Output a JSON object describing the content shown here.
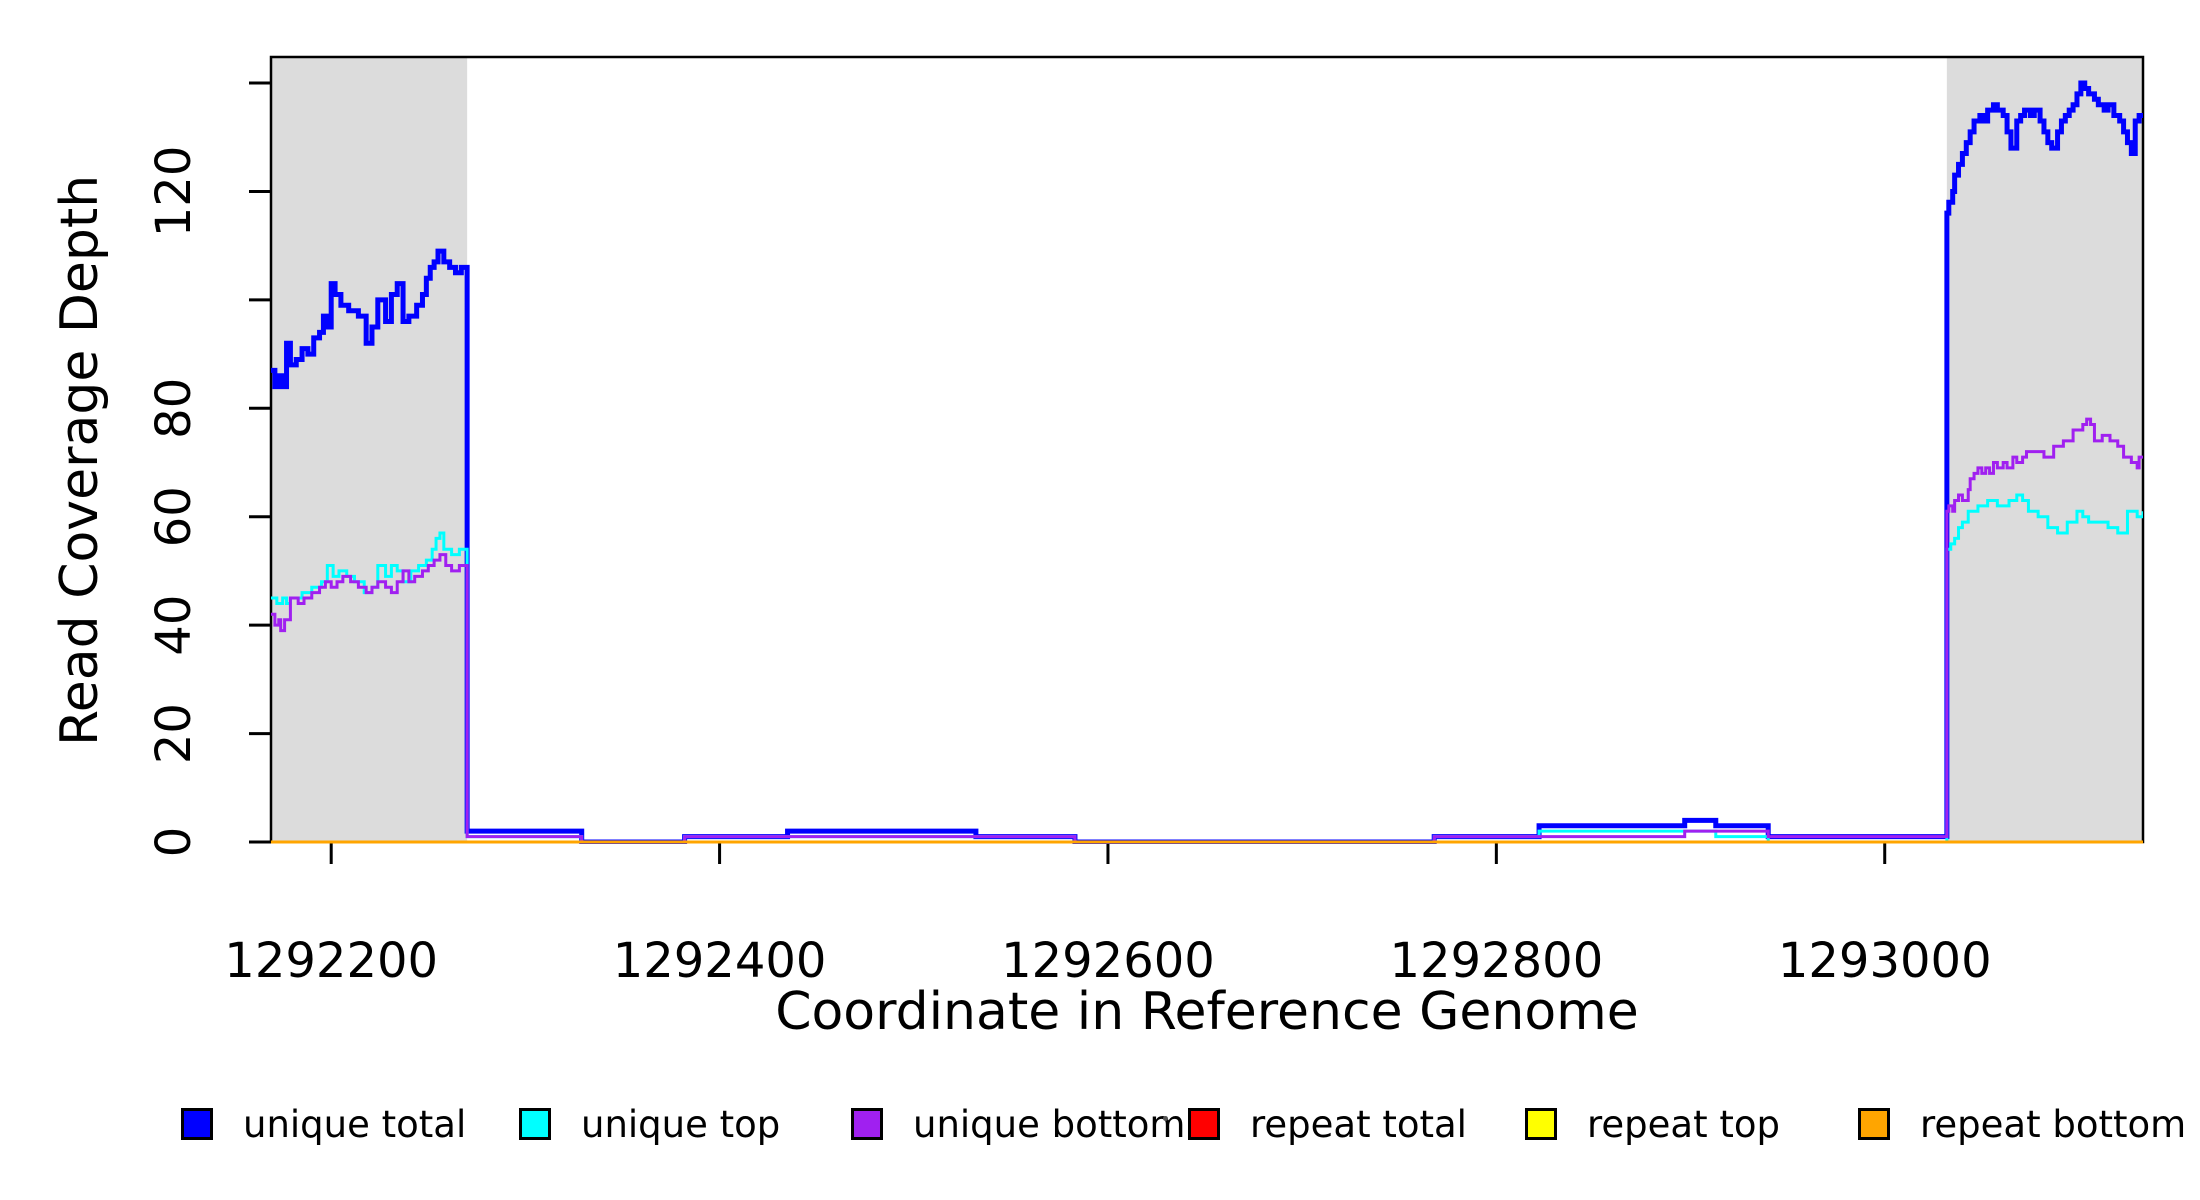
{
  "chart_data": {
    "type": "line",
    "subtype": "step-coverage",
    "title": "",
    "xlabel": "Coordinate in Reference Genome",
    "ylabel": "Read Coverage Depth",
    "xlim": [
      1292169,
      1293133
    ],
    "ylim": [
      0,
      144.8
    ],
    "grid": false,
    "legend_position": "bottom",
    "x_ticks": [
      1292200,
      1292400,
      1292600,
      1292800,
      1293000
    ],
    "x_tick_labels": [
      "1292200",
      "1292400",
      "1292600",
      "1292800",
      "1293000"
    ],
    "y_ticks": [
      0,
      20,
      40,
      60,
      80,
      100,
      120,
      140
    ],
    "y_tick_labels": [
      "0",
      "20",
      "40",
      "60",
      "80",
      "",
      "120",
      ""
    ],
    "shaded_regions": [
      {
        "x0": 1292169,
        "x1": 1292270,
        "color": "#DCDCDC"
      },
      {
        "x0": 1293032,
        "x1": 1293133,
        "color": "#DCDCDC"
      }
    ],
    "series": [
      {
        "name": "unique total",
        "color": "#0000FF",
        "width": 5,
        "points": [
          [
            1292169,
            87
          ],
          [
            1292171,
            84
          ],
          [
            1292173,
            86
          ],
          [
            1292175,
            84
          ],
          [
            1292177,
            92
          ],
          [
            1292179,
            88
          ],
          [
            1292182,
            89
          ],
          [
            1292185,
            91
          ],
          [
            1292188,
            90
          ],
          [
            1292191,
            93
          ],
          [
            1292194,
            94
          ],
          [
            1292196,
            97
          ],
          [
            1292198,
            95
          ],
          [
            1292200,
            103
          ],
          [
            1292202,
            101
          ],
          [
            1292205,
            99
          ],
          [
            1292209,
            98
          ],
          [
            1292214,
            97
          ],
          [
            1292218,
            92
          ],
          [
            1292221,
            95
          ],
          [
            1292224,
            100
          ],
          [
            1292228,
            96
          ],
          [
            1292231,
            101
          ],
          [
            1292234,
            103
          ],
          [
            1292237,
            96
          ],
          [
            1292240,
            97
          ],
          [
            1292244,
            99
          ],
          [
            1292247,
            101
          ],
          [
            1292249,
            104
          ],
          [
            1292251,
            106
          ],
          [
            1292253,
            107
          ],
          [
            1292255,
            109
          ],
          [
            1292258,
            107
          ],
          [
            1292261,
            106
          ],
          [
            1292264,
            105
          ],
          [
            1292267,
            106
          ],
          [
            1292270,
            2
          ],
          [
            1292329,
            0
          ],
          [
            1292382,
            1
          ],
          [
            1292435,
            2
          ],
          [
            1292532,
            1
          ],
          [
            1292583,
            0
          ],
          [
            1292768,
            1
          ],
          [
            1292822,
            3
          ],
          [
            1292897,
            4
          ],
          [
            1292913,
            3
          ],
          [
            1292940,
            1
          ],
          [
            1293032,
            116
          ],
          [
            1293033,
            118
          ],
          [
            1293035,
            120
          ],
          [
            1293036,
            123
          ],
          [
            1293038,
            125
          ],
          [
            1293040,
            127
          ],
          [
            1293042,
            129
          ],
          [
            1293044,
            131
          ],
          [
            1293046,
            133
          ],
          [
            1293049,
            134
          ],
          [
            1293051,
            133
          ],
          [
            1293053,
            135
          ],
          [
            1293056,
            136
          ],
          [
            1293058,
            135
          ],
          [
            1293061,
            134
          ],
          [
            1293063,
            131
          ],
          [
            1293065,
            128
          ],
          [
            1293068,
            133
          ],
          [
            1293070,
            134
          ],
          [
            1293072,
            135
          ],
          [
            1293075,
            134
          ],
          [
            1293077,
            135
          ],
          [
            1293080,
            133
          ],
          [
            1293082,
            131
          ],
          [
            1293084,
            129
          ],
          [
            1293086,
            128
          ],
          [
            1293089,
            131
          ],
          [
            1293091,
            133
          ],
          [
            1293093,
            134
          ],
          [
            1293095,
            135
          ],
          [
            1293097,
            136
          ],
          [
            1293099,
            138
          ],
          [
            1293101,
            140
          ],
          [
            1293103,
            139
          ],
          [
            1293105,
            138
          ],
          [
            1293108,
            137
          ],
          [
            1293110,
            136
          ],
          [
            1293113,
            135
          ],
          [
            1293115,
            136
          ],
          [
            1293118,
            134
          ],
          [
            1293121,
            133
          ],
          [
            1293123,
            131
          ],
          [
            1293125,
            129
          ],
          [
            1293127,
            127
          ],
          [
            1293129,
            133
          ],
          [
            1293131,
            134
          ],
          [
            1293133,
            134
          ]
        ]
      },
      {
        "name": "unique top",
        "color": "#00FFFF",
        "width": 3,
        "points": [
          [
            1292169,
            45
          ],
          [
            1292172,
            44
          ],
          [
            1292175,
            45
          ],
          [
            1292177,
            44
          ],
          [
            1292179,
            45
          ],
          [
            1292185,
            46
          ],
          [
            1292190,
            47
          ],
          [
            1292195,
            48
          ],
          [
            1292198,
            51
          ],
          [
            1292201,
            49
          ],
          [
            1292204,
            50
          ],
          [
            1292208,
            49
          ],
          [
            1292212,
            48
          ],
          [
            1292217,
            46
          ],
          [
            1292221,
            47
          ],
          [
            1292224,
            51
          ],
          [
            1292228,
            49
          ],
          [
            1292231,
            51
          ],
          [
            1292234,
            50
          ],
          [
            1292237,
            48
          ],
          [
            1292241,
            50
          ],
          [
            1292245,
            51
          ],
          [
            1292249,
            52
          ],
          [
            1292252,
            54
          ],
          [
            1292254,
            56
          ],
          [
            1292256,
            57
          ],
          [
            1292258,
            54
          ],
          [
            1292262,
            53
          ],
          [
            1292266,
            54
          ],
          [
            1292270,
            1
          ],
          [
            1292329,
            0
          ],
          [
            1292382,
            1
          ],
          [
            1292583,
            0
          ],
          [
            1292768,
            1
          ],
          [
            1292822,
            2
          ],
          [
            1292913,
            1
          ],
          [
            1292940,
            0
          ],
          [
            1293032,
            54
          ],
          [
            1293034,
            55
          ],
          [
            1293036,
            56
          ],
          [
            1293038,
            58
          ],
          [
            1293040,
            59
          ],
          [
            1293043,
            61
          ],
          [
            1293048,
            62
          ],
          [
            1293053,
            63
          ],
          [
            1293058,
            62
          ],
          [
            1293064,
            63
          ],
          [
            1293068,
            64
          ],
          [
            1293071,
            63
          ],
          [
            1293074,
            61
          ],
          [
            1293079,
            60
          ],
          [
            1293084,
            58
          ],
          [
            1293089,
            57
          ],
          [
            1293094,
            59
          ],
          [
            1293099,
            61
          ],
          [
            1293102,
            60
          ],
          [
            1293105,
            59
          ],
          [
            1293110,
            59
          ],
          [
            1293115,
            58
          ],
          [
            1293120,
            57
          ],
          [
            1293125,
            61
          ],
          [
            1293130,
            60
          ],
          [
            1293133,
            61
          ]
        ]
      },
      {
        "name": "unique bottom",
        "color": "#A020F0",
        "width": 3,
        "points": [
          [
            1292169,
            42
          ],
          [
            1292171,
            40
          ],
          [
            1292173,
            41
          ],
          [
            1292174,
            39
          ],
          [
            1292176,
            41
          ],
          [
            1292179,
            45
          ],
          [
            1292183,
            44
          ],
          [
            1292186,
            45
          ],
          [
            1292190,
            46
          ],
          [
            1292194,
            47
          ],
          [
            1292197,
            48
          ],
          [
            1292200,
            47
          ],
          [
            1292203,
            48
          ],
          [
            1292206,
            49
          ],
          [
            1292210,
            48
          ],
          [
            1292214,
            47
          ],
          [
            1292218,
            46
          ],
          [
            1292221,
            47
          ],
          [
            1292224,
            48
          ],
          [
            1292228,
            47
          ],
          [
            1292231,
            46
          ],
          [
            1292234,
            48
          ],
          [
            1292237,
            50
          ],
          [
            1292240,
            48
          ],
          [
            1292243,
            49
          ],
          [
            1292247,
            50
          ],
          [
            1292250,
            51
          ],
          [
            1292253,
            52
          ],
          [
            1292256,
            53
          ],
          [
            1292259,
            51
          ],
          [
            1292262,
            50
          ],
          [
            1292266,
            51
          ],
          [
            1292270,
            1
          ],
          [
            1292329,
            0
          ],
          [
            1292382,
            1
          ],
          [
            1292583,
            0
          ],
          [
            1292768,
            1
          ],
          [
            1292897,
            2
          ],
          [
            1292940,
            1
          ],
          [
            1293032,
            61
          ],
          [
            1293033,
            62
          ],
          [
            1293035,
            61
          ],
          [
            1293036,
            63
          ],
          [
            1293038,
            64
          ],
          [
            1293040,
            63
          ],
          [
            1293043,
            65
          ],
          [
            1293044,
            67
          ],
          [
            1293046,
            68
          ],
          [
            1293048,
            69
          ],
          [
            1293050,
            68
          ],
          [
            1293052,
            69
          ],
          [
            1293054,
            68
          ],
          [
            1293056,
            70
          ],
          [
            1293058,
            69
          ],
          [
            1293061,
            70
          ],
          [
            1293063,
            69
          ],
          [
            1293066,
            71
          ],
          [
            1293068,
            70
          ],
          [
            1293071,
            71
          ],
          [
            1293073,
            72
          ],
          [
            1293078,
            72
          ],
          [
            1293082,
            71
          ],
          [
            1293087,
            73
          ],
          [
            1293092,
            74
          ],
          [
            1293097,
            76
          ],
          [
            1293100,
            76
          ],
          [
            1293102,
            77
          ],
          [
            1293104,
            78
          ],
          [
            1293106,
            77
          ],
          [
            1293108,
            74
          ],
          [
            1293112,
            75
          ],
          [
            1293116,
            74
          ],
          [
            1293120,
            73
          ],
          [
            1293123,
            71
          ],
          [
            1293127,
            70
          ],
          [
            1293130,
            69
          ],
          [
            1293131,
            71
          ],
          [
            1293133,
            71
          ]
        ]
      },
      {
        "name": "repeat total",
        "color": "#FF0000",
        "width": 3,
        "points": [
          [
            1292169,
            0
          ],
          [
            1293133,
            0
          ]
        ]
      },
      {
        "name": "repeat top",
        "color": "#FFFF00",
        "width": 3,
        "points": [
          [
            1292169,
            0
          ],
          [
            1293133,
            0
          ]
        ]
      },
      {
        "name": "repeat bottom",
        "color": "#FFA500",
        "width": 3,
        "points": [
          [
            1292169,
            0
          ],
          [
            1293133,
            0
          ]
        ]
      }
    ],
    "legend": {
      "items": [
        {
          "label": "unique total",
          "color": "#0000FF"
        },
        {
          "label": "unique top",
          "color": "#00FFFF"
        },
        {
          "label": "unique bottom",
          "color": "#A020F0"
        },
        {
          "label": "repeat total",
          "color": "#FF0000"
        },
        {
          "label": "repeat top",
          "color": "#FFFF00"
        },
        {
          "label": "repeat bottom",
          "color": "#FFA500"
        }
      ]
    }
  }
}
